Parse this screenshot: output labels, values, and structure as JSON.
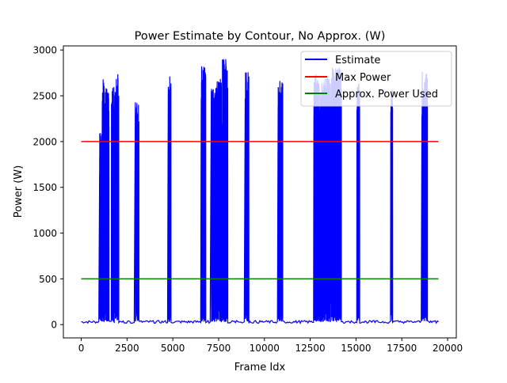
{
  "chart_data": {
    "type": "line",
    "title": "Power Estimate by Contour, No Approx. (W)",
    "xlabel": "Frame Idx",
    "ylabel": "Power (W)",
    "xlim": [
      -975,
      20475
    ],
    "ylim": [
      -145,
      3045
    ],
    "xticks": [
      0,
      2500,
      5000,
      7500,
      10000,
      12500,
      15000,
      17500,
      20000
    ],
    "xtick_labels": [
      "0",
      "2500",
      "5000",
      "7500",
      "10000",
      "12500",
      "15000",
      "17500",
      "20000"
    ],
    "yticks": [
      0,
      500,
      1000,
      1500,
      2000,
      2500,
      3000
    ],
    "ytick_labels": [
      "0",
      "500",
      "1000",
      "1500",
      "2000",
      "2500",
      "3000"
    ],
    "grid": false,
    "legend_position": "top-right",
    "series": [
      {
        "name": "Estimate",
        "color": "#0000ff",
        "baseline": 30,
        "x_range": [
          0,
          19500
        ],
        "bursts": [
          {
            "start": 1000,
            "end": 1120,
            "peak": 2100
          },
          {
            "start": 1150,
            "end": 1250,
            "peak": 2750
          },
          {
            "start": 1250,
            "end": 1520,
            "peak": 2600
          },
          {
            "start": 1650,
            "end": 1800,
            "peak": 2600
          },
          {
            "start": 1850,
            "end": 2050,
            "peak": 2760
          },
          {
            "start": 2950,
            "end": 3150,
            "peak": 2430
          },
          {
            "start": 4750,
            "end": 4900,
            "peak": 2730
          },
          {
            "start": 6550,
            "end": 6800,
            "peak": 2840
          },
          {
            "start": 7100,
            "end": 7350,
            "peak": 2600
          },
          {
            "start": 7350,
            "end": 7650,
            "peak": 2700
          },
          {
            "start": 7700,
            "end": 8000,
            "peak": 2910
          },
          {
            "start": 8950,
            "end": 9150,
            "peak": 2760
          },
          {
            "start": 10750,
            "end": 11000,
            "peak": 2680
          },
          {
            "start": 12700,
            "end": 13000,
            "peak": 2760
          },
          {
            "start": 13050,
            "end": 13600,
            "peak": 2700
          },
          {
            "start": 13650,
            "end": 14200,
            "peak": 2820
          },
          {
            "start": 15050,
            "end": 15200,
            "peak": 2640
          },
          {
            "start": 16900,
            "end": 17000,
            "peak": 2600
          },
          {
            "start": 18600,
            "end": 18900,
            "peak": 2760
          }
        ]
      },
      {
        "name": "Max Power",
        "color": "#ff0000",
        "x": [
          0,
          19500
        ],
        "y": [
          2000,
          2000
        ]
      },
      {
        "name": "Approx. Power Used",
        "color": "#008000",
        "x": [
          0,
          19500
        ],
        "y": [
          500,
          500
        ]
      }
    ]
  }
}
